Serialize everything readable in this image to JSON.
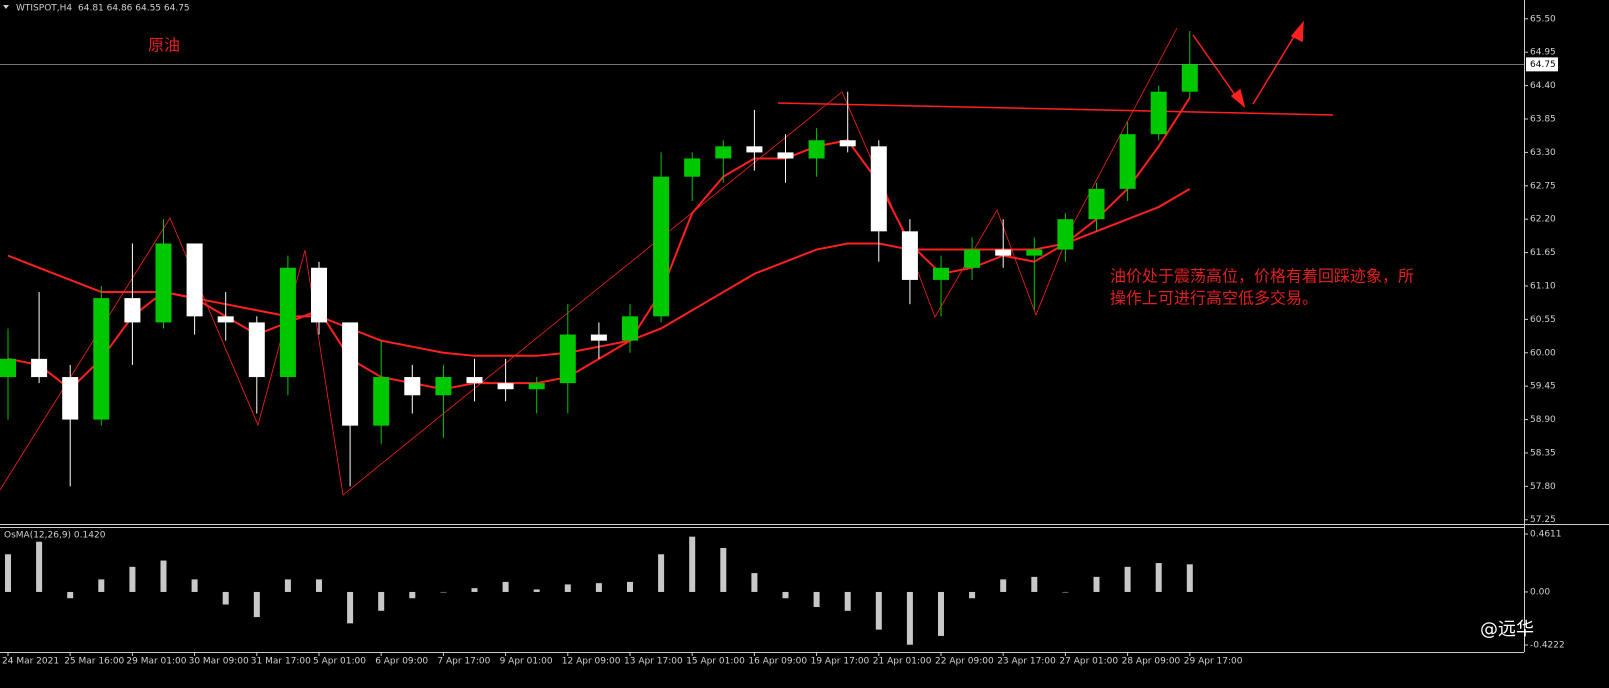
{
  "chart_data": {
    "type": "candlestick",
    "title": "WTISPOT,H4",
    "header_ohlc": "64.81 64.86 64.55 64.75",
    "annotation_title": "原油",
    "annotation_text": [
      "油价处于震荡高位，价格有着回踩迹象，所",
      "操作上可进行高空低多交易。"
    ],
    "watermark": "@远华",
    "categories": [
      "24 Mar 2021",
      null,
      "25 Mar 16:00",
      null,
      "29 Mar 01:00",
      null,
      "30 Mar 09:00",
      null,
      "31 Mar 17:00",
      null,
      "5 Apr 01:00",
      null,
      "6 Apr 09:00",
      null,
      "7 Apr 17:00",
      null,
      "9 Apr 01:00",
      null,
      "12 Apr 09:00",
      null,
      "13 Apr 17:00",
      null,
      "15 Apr 01:00",
      null,
      "16 Apr 09:00",
      null,
      "19 Apr 17:00",
      null,
      "21 Apr 01:00",
      null,
      "22 Apr 09:00",
      null,
      "23 Apr 17:00",
      null,
      "27 Apr 01:00",
      null,
      "28 Apr 09:00",
      null,
      "29 Apr 17:00"
    ],
    "open": [
      59.6,
      59.9,
      59.6,
      58.9,
      60.9,
      60.5,
      61.8,
      60.6,
      60.5,
      59.6,
      61.4,
      60.5,
      58.8,
      59.6,
      59.3,
      59.6,
      59.5,
      59.4,
      59.5,
      60.3,
      60.2,
      60.6,
      62.9,
      63.2,
      63.4,
      63.3,
      63.2,
      63.5,
      63.4,
      62.0,
      61.2,
      61.4,
      61.7,
      61.6,
      61.7,
      62.2,
      62.7,
      63.6,
      64.3
    ],
    "high": [
      60.4,
      61.0,
      59.8,
      61.1,
      61.8,
      62.2,
      61.8,
      61.0,
      60.6,
      61.6,
      61.5,
      60.5,
      60.2,
      59.8,
      59.8,
      59.9,
      59.9,
      59.6,
      60.8,
      60.5,
      60.8,
      63.3,
      63.3,
      63.5,
      64.0,
      63.6,
      63.7,
      64.3,
      63.5,
      62.2,
      61.6,
      61.9,
      62.2,
      61.9,
      62.3,
      62.8,
      63.8,
      64.4,
      65.3
    ],
    "low": [
      58.9,
      59.5,
      57.8,
      58.8,
      59.8,
      60.4,
      60.3,
      60.2,
      59.0,
      59.3,
      60.3,
      57.8,
      58.5,
      59.0,
      58.6,
      59.2,
      59.2,
      59.0,
      59.0,
      59.9,
      60.0,
      60.5,
      62.5,
      62.8,
      63.0,
      62.8,
      62.9,
      63.3,
      61.5,
      60.8,
      60.6,
      61.2,
      61.4,
      60.7,
      61.5,
      62.0,
      62.5,
      63.5,
      64.2
    ],
    "close": [
      59.9,
      59.6,
      58.9,
      60.9,
      60.5,
      61.8,
      60.6,
      60.5,
      59.6,
      61.4,
      60.5,
      58.8,
      59.6,
      59.3,
      59.6,
      59.5,
      59.4,
      59.5,
      60.3,
      60.2,
      60.6,
      62.9,
      63.2,
      63.4,
      63.3,
      63.2,
      63.5,
      63.4,
      62.0,
      61.2,
      61.4,
      61.7,
      61.6,
      61.7,
      62.2,
      62.7,
      63.6,
      64.3,
      64.75
    ],
    "up_color": "#00c800",
    "down_color": "#ffffff",
    "series": [
      {
        "color": "#ff2020",
        "values": [
          59.9,
          59.8,
          59.4,
          59.9,
          60.6,
          61.0,
          60.9,
          60.6,
          60.3,
          60.5,
          60.7,
          59.9,
          59.6,
          59.5,
          59.4,
          59.5,
          59.5,
          59.5,
          59.6,
          59.9,
          60.2,
          61.0,
          62.3,
          62.9,
          63.2,
          63.2,
          63.4,
          63.5,
          62.8,
          61.8,
          61.3,
          61.4,
          61.6,
          61.5,
          61.8,
          62.2,
          62.7,
          63.4,
          64.2
        ]
      },
      {
        "color": "#ff2020",
        "values": [
          61.6,
          61.4,
          61.2,
          61.0,
          61.0,
          61.0,
          60.9,
          60.8,
          60.7,
          60.6,
          60.6,
          60.4,
          60.2,
          60.1,
          60.0,
          59.95,
          59.95,
          59.95,
          60.0,
          60.1,
          60.2,
          60.4,
          60.7,
          61.0,
          61.3,
          61.5,
          61.7,
          61.8,
          61.8,
          61.7,
          61.7,
          61.7,
          61.7,
          61.7,
          61.8,
          62.0,
          62.2,
          62.4,
          62.7
        ]
      }
    ],
    "current_price": {
      "value": 64.75,
      "label": "64.75"
    },
    "ylim": [
      57.18,
      65.81
    ],
    "yticks": [
      {
        "value": 65.5,
        "label": "65.50"
      },
      {
        "value": 64.95,
        "label": "64.95"
      },
      {
        "value": 64.4,
        "label": "64.40"
      },
      {
        "value": 63.85,
        "label": "63.85"
      },
      {
        "value": 63.3,
        "label": "63.30"
      },
      {
        "value": 62.75,
        "label": "62.75"
      },
      {
        "value": 62.2,
        "label": "62.20"
      },
      {
        "value": 61.65,
        "label": "61.65"
      },
      {
        "value": 61.1,
        "label": "61.10"
      },
      {
        "value": 60.55,
        "label": "60.55"
      },
      {
        "value": 60,
        "label": "60.00"
      },
      {
        "value": 59.45,
        "label": "59.45"
      },
      {
        "value": 58.9,
        "label": "58.90"
      },
      {
        "value": 58.35,
        "label": "58.35"
      },
      {
        "value": 57.8,
        "label": "57.80"
      },
      {
        "value": 57.25,
        "label": "57.25"
      }
    ],
    "osma": {
      "title": "OsMA(12,26,9) 0.1420",
      "color": "#c8c8c8",
      "values": [
        0.3,
        0.4,
        -0.05,
        0.1,
        0.2,
        0.25,
        0.1,
        -0.1,
        -0.2,
        0.1,
        0.1,
        -0.25,
        -0.15,
        -0.05,
        0.0,
        0.03,
        0.08,
        0.02,
        0.06,
        0.07,
        0.08,
        0.3,
        0.44,
        0.35,
        0.15,
        -0.05,
        -0.12,
        -0.15,
        -0.3,
        -0.42,
        -0.35,
        -0.05,
        0.1,
        0.12,
        0.0,
        0.12,
        0.2,
        0.23,
        0.22
      ],
      "y2lim": [
        -0.478,
        0.509
      ],
      "y2ticks": [
        0.4611,
        {
          "value": 0,
          "label": "0.00"
        },
        -0.4222
      ]
    }
  }
}
